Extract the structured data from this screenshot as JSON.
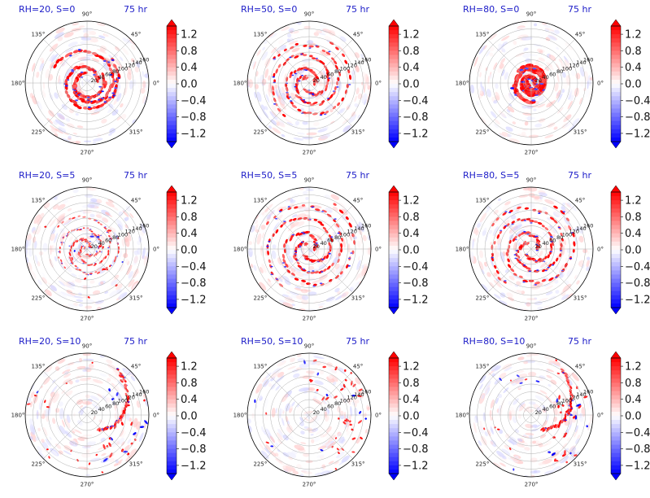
{
  "chart_data": {
    "type": "heatmap",
    "layout": {
      "rows": 3,
      "cols": 3
    },
    "colormap": "bwr",
    "panels": [
      {
        "title_left": "RH=20, S=0",
        "title_right": "75 hr",
        "structure": "ring-spiral",
        "extent": 0.62,
        "noise": 0.35
      },
      {
        "title_left": "RH=50, S=0",
        "title_right": "75 hr",
        "structure": "spiral",
        "extent": 0.75,
        "noise": 0.4
      },
      {
        "title_left": "RH=80, S=0",
        "title_right": "75 hr",
        "structure": "compact-core",
        "extent": 0.35,
        "noise": 0.3
      },
      {
        "title_left": "RH=20, S=5",
        "title_right": "75 hr",
        "structure": "diffuse-spiral",
        "extent": 0.7,
        "noise": 0.55
      },
      {
        "title_left": "RH=50, S=5",
        "title_right": "75 hr",
        "structure": "spiral",
        "extent": 0.85,
        "noise": 0.6
      },
      {
        "title_left": "RH=80, S=5",
        "title_right": "75 hr",
        "structure": "spiral",
        "extent": 0.8,
        "noise": 0.5
      },
      {
        "title_left": "RH=20, S=10",
        "title_right": "75 hr",
        "structure": "scattered-east",
        "extent": 0.95,
        "noise": 0.4
      },
      {
        "title_left": "RH=50, S=10",
        "title_right": "75 hr",
        "structure": "scattered-northeast",
        "extent": 0.95,
        "noise": 0.45
      },
      {
        "title_left": "RH=80, S=10",
        "title_right": "75 hr",
        "structure": "scattered-east",
        "extent": 0.9,
        "noise": 0.55
      }
    ],
    "angular_ticks": [
      "0°",
      "45°",
      "90°",
      "135°",
      "180°",
      "225°",
      "270°",
      "315°"
    ],
    "radial_ticks": [
      "20",
      "40",
      "60",
      "80",
      "100",
      "120",
      "140",
      "160"
    ],
    "radial_label_angle_deg": 22.5,
    "rmax": 160,
    "colorbar": {
      "ticks": [
        1.2,
        0.8,
        0.4,
        0.0,
        -0.4,
        -0.8,
        -1.2
      ],
      "tick_labels": [
        "1.2",
        "0.8",
        "0.4",
        "0.0",
        "−0.4",
        "−0.8",
        "−1.2"
      ],
      "min": -1.4,
      "max": 1.4,
      "extend": "both"
    },
    "colors": {
      "title": "#1c1cc8",
      "positive": "#ff0000",
      "negative": "#0000ff",
      "neutral": "#ffffff"
    }
  }
}
